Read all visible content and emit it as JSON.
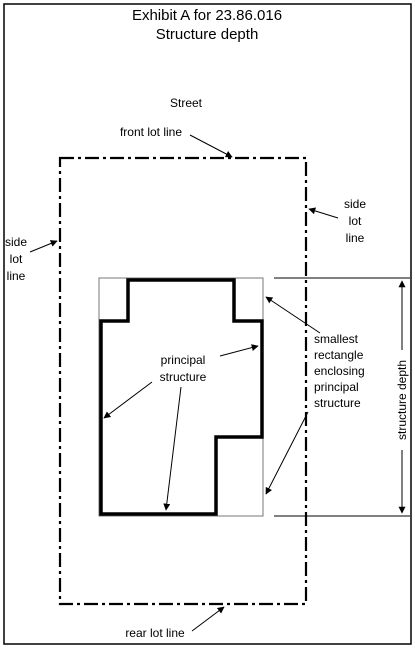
{
  "title": {
    "line1": "Exhibit A for 23.86.016",
    "line2": "Structure depth"
  },
  "labels": {
    "street": "Street",
    "front_lot_line": "front lot line",
    "rear_lot_line": "rear lot line",
    "side_lot_line_left": [
      "side",
      "lot",
      "line"
    ],
    "side_lot_line_right": [
      "side",
      "lot",
      "line"
    ],
    "principal_structure": [
      "principal",
      "structure"
    ],
    "smallest_rectangle": [
      "smallest",
      "rectangle",
      "enclosing",
      "principal",
      "structure"
    ],
    "structure_depth": "structure depth"
  }
}
